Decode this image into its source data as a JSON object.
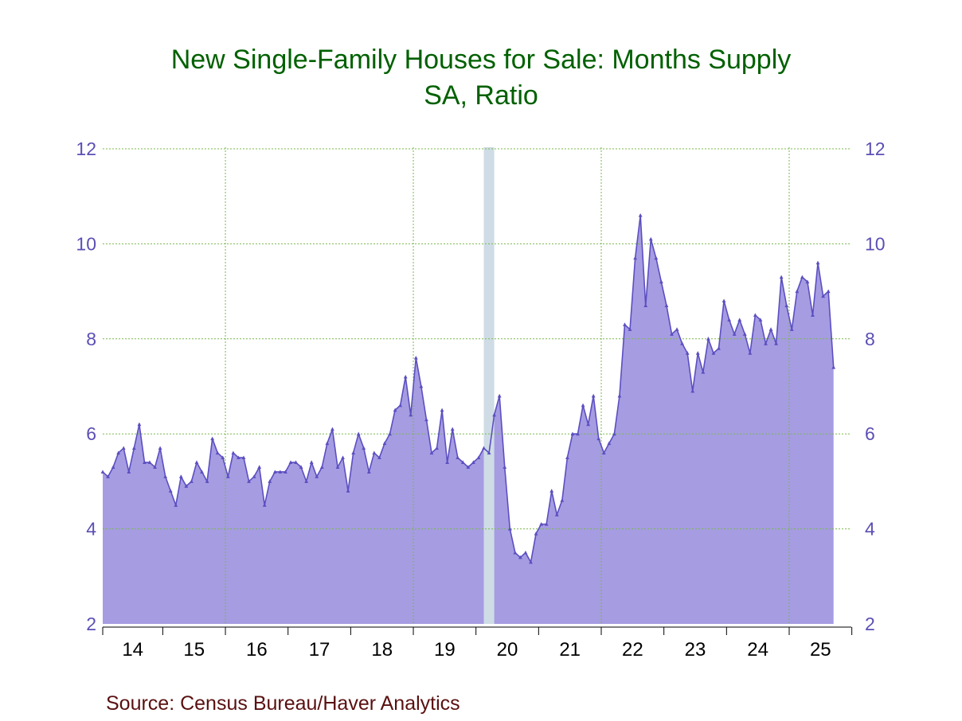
{
  "chart_data": {
    "type": "area",
    "title": "New Single-Family Houses for Sale: Months Supply",
    "subtitle": "SA, Ratio",
    "ylim": [
      2,
      12
    ],
    "y_ticks": [
      "2",
      "4",
      "6",
      "8",
      "10",
      "12"
    ],
    "x_labels": [
      "14",
      "15",
      "16",
      "17",
      "18",
      "19",
      "20",
      "21",
      "22",
      "23",
      "24",
      "25"
    ],
    "grid": true,
    "recession_shading": {
      "start": "2020-02",
      "end": "2020-04"
    },
    "series": [
      {
        "start": "2014-01",
        "values": [
          5.2,
          5.1,
          5.3,
          5.6,
          5.7,
          5.2,
          5.7,
          6.2,
          5.4,
          5.4,
          5.3,
          5.7,
          5.1,
          4.8,
          4.5,
          5.1,
          4.9,
          5.0,
          5.4,
          5.2,
          5.0,
          5.9,
          5.6,
          5.5,
          5.1,
          5.6,
          5.5,
          5.5,
          5.0,
          5.1,
          5.3,
          4.5,
          5.0,
          5.2,
          5.2,
          5.2,
          5.4,
          5.4,
          5.3,
          5.0,
          5.4,
          5.1,
          5.3,
          5.8,
          6.1,
          5.3,
          5.5,
          4.8,
          5.6,
          6.0,
          5.7,
          5.2,
          5.6,
          5.5,
          5.8,
          6.0,
          6.5,
          6.6,
          7.2,
          6.4,
          7.6,
          7.0,
          6.3,
          5.6,
          5.7,
          6.5,
          5.4,
          6.1,
          5.5,
          5.4,
          5.3,
          5.4,
          5.5,
          5.7,
          5.6,
          6.4,
          6.8,
          5.3,
          4.0,
          3.5,
          3.4,
          3.5,
          3.3,
          3.9,
          4.1,
          4.1,
          4.8,
          4.3,
          4.6,
          5.5,
          6.0,
          6.0,
          6.6,
          6.2,
          6.8,
          5.9,
          5.6,
          5.8,
          6.0,
          6.8,
          8.3,
          8.2,
          9.7,
          10.6,
          8.7,
          10.1,
          9.7,
          9.2,
          8.7,
          8.1,
          8.2,
          7.9,
          7.7,
          6.9,
          7.7,
          7.3,
          8.0,
          7.7,
          7.8,
          8.8,
          8.4,
          8.1,
          8.4,
          8.1,
          7.7,
          8.5,
          8.4,
          7.9,
          8.2,
          7.9,
          9.3,
          8.7,
          8.2,
          9.0,
          9.3,
          9.2,
          8.5,
          9.6,
          8.9,
          9.0,
          7.4
        ]
      }
    ]
  },
  "source": "Source:  Census Bureau/Haver Analytics",
  "colors": {
    "title": "#006000",
    "axis_labels": "#5b4fb5",
    "area_fill": "#a69ce2",
    "line": "#5b4fc0",
    "grid": "#7ab84a",
    "recession": "#cfdce6",
    "source": "#5a1010"
  }
}
